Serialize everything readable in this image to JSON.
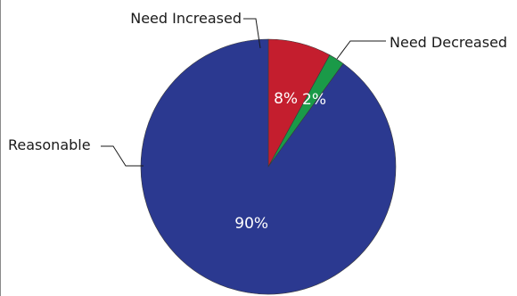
{
  "chart_data": {
    "type": "pie",
    "title": "",
    "slices": [
      {
        "label": "Need Increased",
        "value": 8,
        "value_label": "8%",
        "color": "#c41e2e"
      },
      {
        "label": "Need Decreased",
        "value": 2,
        "value_label": "2%",
        "color": "#1a9a48"
      },
      {
        "label": "Reasonable",
        "value": 90,
        "value_label": "90%",
        "color": "#2b3990"
      }
    ],
    "start_angle_deg": 0,
    "direction": "clockwise",
    "legend": "none",
    "labels": "callouts"
  }
}
